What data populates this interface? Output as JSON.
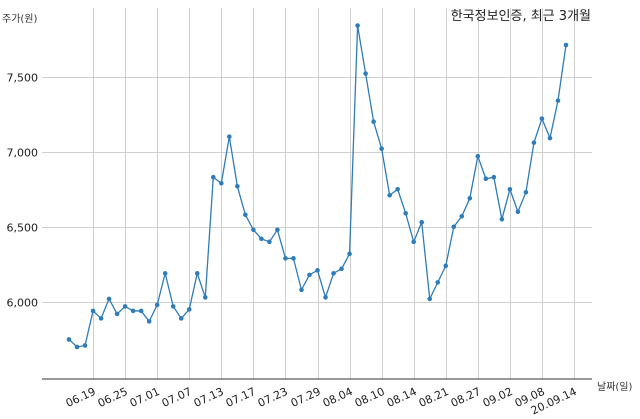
{
  "chart_data": {
    "type": "line",
    "title": "한국정보인증, 최근 3개월",
    "ylabel": "주가(원)",
    "xlabel": "날짜(일)",
    "ylim": [
      5550,
      7900
    ],
    "yticks": [
      6000,
      6500,
      7000,
      7500
    ],
    "ytick_labels": [
      "6,000",
      "6,500",
      "7,000",
      "7,500"
    ],
    "xtick_labels": [
      "06.19",
      "06.25",
      "07.01",
      "07.07",
      "07.13",
      "07.17",
      "07.23",
      "07.29",
      "08.04",
      "08.10",
      "08.14",
      "08.21",
      "08.27",
      "09.02",
      "09.08",
      "20.09.14"
    ],
    "xtick_indices": [
      3,
      7,
      11,
      15,
      19,
      23,
      27,
      31,
      35,
      39,
      43,
      47,
      51,
      55,
      59,
      63
    ],
    "grid": true,
    "line_color": "#2e7cb8",
    "series": [
      {
        "values": [
          5750,
          5700,
          5710,
          5940,
          5890,
          6020,
          5920,
          5970,
          5940,
          5940,
          5870,
          5980,
          6190,
          5970,
          5890,
          5950,
          6190,
          6030,
          6830,
          6790,
          7100,
          6770,
          6580,
          6480,
          6420,
          6400,
          6480,
          6290,
          6290,
          6080,
          6180,
          6210,
          6030,
          6190,
          6220,
          6320,
          7840,
          7520,
          7200,
          7020,
          6710,
          6750,
          6590,
          6400,
          6530,
          6020,
          6130,
          6240,
          6500,
          6570,
          6690,
          6970,
          6820,
          6830,
          6550,
          6750,
          6600,
          6730,
          7060,
          7220,
          7090,
          7340,
          7710
        ]
      }
    ]
  }
}
